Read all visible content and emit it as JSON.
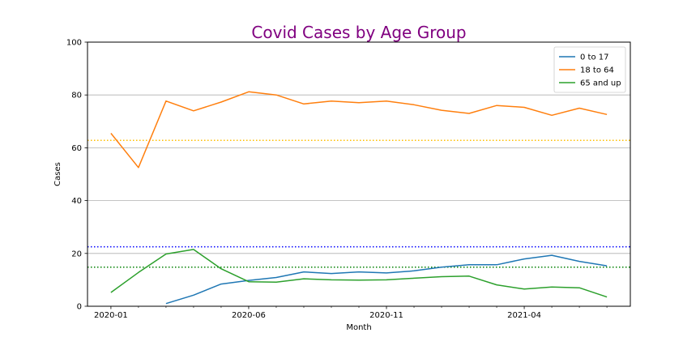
{
  "chart_data": {
    "type": "line",
    "title": "Covid Cases by Age Group",
    "title_color": "#800080",
    "xlabel": "Month",
    "ylabel": "Cases",
    "ylim": [
      0,
      100
    ],
    "yticks": [
      0,
      20,
      40,
      60,
      80,
      100
    ],
    "xlim": [
      -0.85,
      18.85
    ],
    "xticks": [
      {
        "pos": 0,
        "label": "2020-01"
      },
      {
        "pos": 5,
        "label": "2020-06"
      },
      {
        "pos": 10,
        "label": "2020-11"
      },
      {
        "pos": 15,
        "label": "2021-04"
      }
    ],
    "minor_xticks": [
      1,
      2,
      3,
      4,
      6,
      7,
      8,
      9,
      11,
      12,
      13,
      14,
      16,
      17,
      18
    ],
    "grid": "y",
    "legend": "top-right",
    "series": [
      {
        "name": "0 to 17",
        "color": "#1f77b4",
        "x": [
          2,
          3,
          4,
          5,
          6,
          7,
          8,
          9,
          10,
          11,
          12,
          13,
          14,
          15,
          16,
          17,
          18
        ],
        "values": [
          1.0,
          4.2,
          8.4,
          9.8,
          10.9,
          13.0,
          12.4,
          13.0,
          12.6,
          13.4,
          14.8,
          15.7,
          15.7,
          17.9,
          19.3,
          17.0,
          15.3
        ]
      },
      {
        "name": "18 to 64",
        "color": "#ff7f0e",
        "x": [
          0,
          1,
          2,
          3,
          4,
          5,
          6,
          7,
          8,
          9,
          10,
          11,
          12,
          13,
          14,
          15,
          16,
          17,
          18
        ],
        "values": [
          65.5,
          52.5,
          77.7,
          74.0,
          77.3,
          81.2,
          80.0,
          76.6,
          77.7,
          77.1,
          77.7,
          76.3,
          74.2,
          73.0,
          76.0,
          75.3,
          72.3,
          75.0,
          72.6
        ]
      },
      {
        "name": "65 and up",
        "color": "#2ca02c",
        "x": [
          0,
          1,
          2,
          3,
          4,
          5,
          6,
          7,
          8,
          9,
          10,
          11,
          12,
          13,
          14,
          15,
          16,
          17,
          18
        ],
        "values": [
          5.2,
          12.8,
          19.8,
          21.5,
          14.2,
          9.3,
          9.1,
          10.4,
          10.0,
          9.9,
          10.0,
          10.6,
          11.2,
          11.4,
          8.1,
          6.5,
          7.3,
          7.0,
          3.5
        ]
      }
    ],
    "reference_lines": [
      {
        "value": 62.8,
        "color": "#ffbf00"
      },
      {
        "value": 22.5,
        "color": "#0000ff"
      },
      {
        "value": 14.8,
        "color": "#008000"
      }
    ]
  }
}
